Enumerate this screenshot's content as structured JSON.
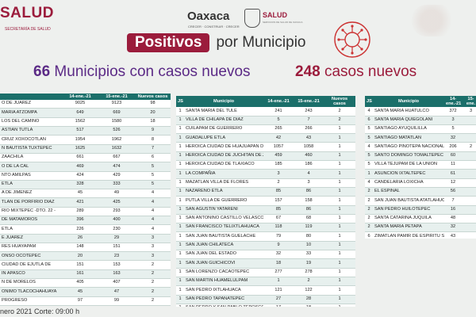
{
  "header": {
    "salud_logo": "SALUD",
    "salud_sub": "SECRETARÍA DE SALUD",
    "oaxaca_logo": "Oaxaca",
    "oaxaca_sub": "CRECER · CONSTRUIR · CRECER",
    "salud_small": "SALUD",
    "salud_small_sub": "SERVICIOS DE SALUD DE OAXACA"
  },
  "title": {
    "highlight": "Positivos",
    "rest": "por Municipio"
  },
  "summary": {
    "municipios_num": "66",
    "municipios_label": "Municipios con casos nuevos",
    "casos_num": "248",
    "casos_label": "casos nuevos"
  },
  "table1": {
    "headers": [
      "",
      "14-ene.-21",
      "15-ene.-21",
      "Nuevos casos"
    ],
    "rows": [
      [
        "O DE JUAREZ",
        "9025",
        "9123",
        "98"
      ],
      [
        "MARIA ATZOMPA",
        "649",
        "669",
        "20"
      ],
      [
        "LOS DEL CAMINO",
        "1562",
        "1580",
        "18"
      ],
      [
        "ASTIAN TUTLA",
        "517",
        "526",
        "9"
      ],
      [
        "CRUZ XOXOCOTLAN",
        "1954",
        "1962",
        "8"
      ],
      [
        "N BAUTISTA TUXTEPEC",
        "1625",
        "1632",
        "7"
      ],
      [
        "ZAACHILA",
        "661",
        "667",
        "6"
      ],
      [
        "O DE LA CAL",
        "469",
        "474",
        "5"
      ],
      [
        "NTO AMILPAS",
        "424",
        "429",
        "5"
      ],
      [
        "ETLA",
        "328",
        "333",
        "5"
      ],
      [
        "A DE JIMENEZ",
        "45",
        "49",
        "4"
      ],
      [
        "TLAN DE PORFIRIO DIAZ",
        "421",
        "425",
        "4"
      ],
      [
        "RIO MIXTEPEC -DTO. 22 -",
        "289",
        "293",
        "4"
      ],
      [
        "DE MATAMOROS",
        "396",
        "400",
        "4"
      ],
      [
        "ETLA",
        "226",
        "230",
        "4"
      ],
      [
        "E JUAREZ",
        "26",
        "29",
        "3"
      ],
      [
        "RES HUAYAPAM",
        "148",
        "151",
        "3"
      ],
      [
        "ONSO OCOTEPEC",
        "20",
        "23",
        "3"
      ],
      [
        "CIUDAD DE EJUTLA DE",
        "151",
        "153",
        "2"
      ],
      [
        "IN APASCO",
        "161",
        "163",
        "2"
      ],
      [
        "N DE MORELOS",
        "405",
        "407",
        "2"
      ],
      [
        "ONIMO TLACOCHAHUAYA",
        "45",
        "47",
        "2"
      ],
      [
        "PROGRESO",
        "97",
        "99",
        "2"
      ],
      [
        "LO HUITZO",
        "77",
        "79",
        "2"
      ],
      [
        "RES AMILPAS",
        "292",
        "294",
        "2"
      ]
    ]
  },
  "table2": {
    "headers": [
      "JS",
      "Municipio",
      "14-ene.-21",
      "15-ene.-21",
      "Nuevos casos"
    ],
    "rows": [
      [
        "1",
        "SANTA MARIA DEL TULE",
        "241",
        "243",
        "2"
      ],
      [
        "1",
        "VILLA DE CHILAPA DE DIAZ",
        "5",
        "7",
        "2"
      ],
      [
        "1",
        "CUILAPAM DE GUERRERO",
        "265",
        "266",
        "1"
      ],
      [
        "1",
        "GUADALUPE ETLA",
        "42",
        "43",
        "1"
      ],
      [
        "1",
        "HEROICA CIUDAD DE HUAJUAPAN DE LEON",
        "1057",
        "1058",
        "1"
      ],
      [
        "1",
        "HEROICA CIUDAD DE JUCHITAN DE ZARAGOZA",
        "459",
        "460",
        "1"
      ],
      [
        "1",
        "HEROICA CIUDAD DE TLAXIACO",
        "185",
        "186",
        "1"
      ],
      [
        "1",
        "LA COMPAÑIA",
        "3",
        "4",
        "1"
      ],
      [
        "1",
        "MAZATLAN VILLA DE FLORES",
        "2",
        "3",
        "1"
      ],
      [
        "1",
        "NAZARENO ETLA",
        "85",
        "86",
        "1"
      ],
      [
        "1",
        "PUTLA VILLA DE GUERRERO",
        "157",
        "158",
        "1"
      ],
      [
        "1",
        "SAN AGUSTIN YATARENI",
        "85",
        "86",
        "1"
      ],
      [
        "1",
        "SAN ANTONINO CASTILLO VELASCO",
        "67",
        "68",
        "1"
      ],
      [
        "1",
        "SAN FRANCISCO TELIXTLAHUACA",
        "118",
        "119",
        "1"
      ],
      [
        "1",
        "SAN JUAN BAUTISTA GUELACHE",
        "79",
        "80",
        "1"
      ],
      [
        "1",
        "SAN JUAN CHILATECA",
        "9",
        "10",
        "1"
      ],
      [
        "1",
        "SAN JUAN DEL ESTADO",
        "32",
        "33",
        "1"
      ],
      [
        "1",
        "SAN JUAN GUICHICOVI",
        "18",
        "19",
        "1"
      ],
      [
        "1",
        "SAN LORENZO CACAOTEPEC",
        "277",
        "278",
        "1"
      ],
      [
        "1",
        "SAN MARTIN HUAMELULPAM",
        "1",
        "2",
        "1"
      ],
      [
        "1",
        "SAN PEDRO IXTLAHUACA",
        "121",
        "122",
        "1"
      ],
      [
        "1",
        "SAN PEDRO TAPANATEPEC",
        "27",
        "28",
        "1"
      ],
      [
        "1",
        "SAN PEDRO Y SAN PABLO TEPOSCOLULA",
        "17",
        "18",
        "1"
      ],
      [
        "1",
        "SANTA ANA ZEGACHE",
        "18",
        "19",
        "1"
      ],
      [
        "1",
        "SANTA MARIA COLOTEPEC",
        "75",
        "76",
        "1"
      ]
    ]
  },
  "table3": {
    "headers": [
      "JS",
      "Municipio",
      "14-ene.-21",
      "15-ene."
    ],
    "rows": [
      [
        "4",
        "SANTA MARIA HUATULCO",
        "372",
        "3"
      ],
      [
        "6",
        "SANTA MARIA QUIEGOLANI",
        "3",
        ""
      ],
      [
        "5",
        "SANTIAGO AYUQUILILLA",
        "5",
        ""
      ],
      [
        "5",
        "SANTIAGO MATATLAN",
        "32",
        ""
      ],
      [
        "4",
        "SANTIAGO PINOTEPA NACIONAL",
        "206",
        "2"
      ],
      [
        "5",
        "SANTO DOMINGO TOMALTEPEC",
        "60",
        ""
      ],
      [
        "5",
        "VILLA TEJUPAM DE LA UNION",
        "11",
        ""
      ],
      [
        "1",
        "ASUNCION IXTALTEPEC",
        "61",
        ""
      ],
      [
        "4",
        "CANDELARIA LOXICHA",
        "12",
        ""
      ],
      [
        "2",
        "EL ESPINAL",
        "56",
        ""
      ],
      [
        "2",
        "SAN JUAN BAUTISTA ATATLAHUCA",
        "7",
        ""
      ],
      [
        "2",
        "SAN PEDRO HUILOTEPEC",
        "16",
        ""
      ],
      [
        "2",
        "SANTA CATARINA JUQUILA",
        "48",
        ""
      ],
      [
        "2",
        "SANTA MARIA PETAPA",
        "32",
        ""
      ],
      [
        "6",
        "ZIMATLAN PAMIR DE ESPIRITU SANTO",
        "43",
        ""
      ],
      [
        "2",
        "SALINA CRUZ",
        "798",
        "7"
      ]
    ]
  },
  "footer": {
    "text": "nero 2021 Corte: 09:00 h"
  }
}
